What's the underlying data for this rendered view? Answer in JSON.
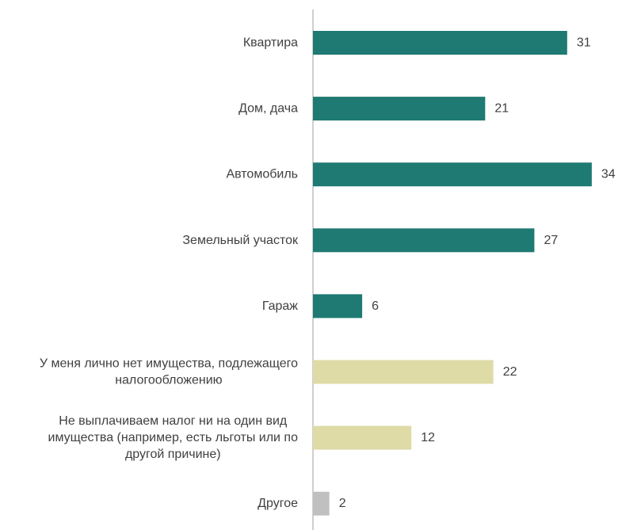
{
  "chart_data": {
    "type": "bar",
    "orientation": "horizontal",
    "categories": [
      [
        "Квартира"
      ],
      [
        "Дом, дача"
      ],
      [
        "Автомобиль"
      ],
      [
        "Земельный участок"
      ],
      [
        "Гараж"
      ],
      [
        "У меня лично нет имущества, подлежащего",
        "налогообложению"
      ],
      [
        "Не выплачиваем налог ни на один вид",
        "имущества (например, есть льготы или по",
        "другой причине)"
      ],
      [
        "Другое"
      ]
    ],
    "values": [
      31,
      21,
      34,
      27,
      6,
      22,
      12,
      2
    ],
    "colors": [
      "#1e7a73",
      "#1e7a73",
      "#1e7a73",
      "#1e7a73",
      "#1e7a73",
      "#dedba6",
      "#dedba6",
      "#c0c0c0"
    ],
    "axis_color": "#bfbfbf",
    "xlim": [
      0,
      34
    ],
    "grid": false,
    "legend": "none",
    "title": "",
    "xlabel": "",
    "ylabel": ""
  }
}
